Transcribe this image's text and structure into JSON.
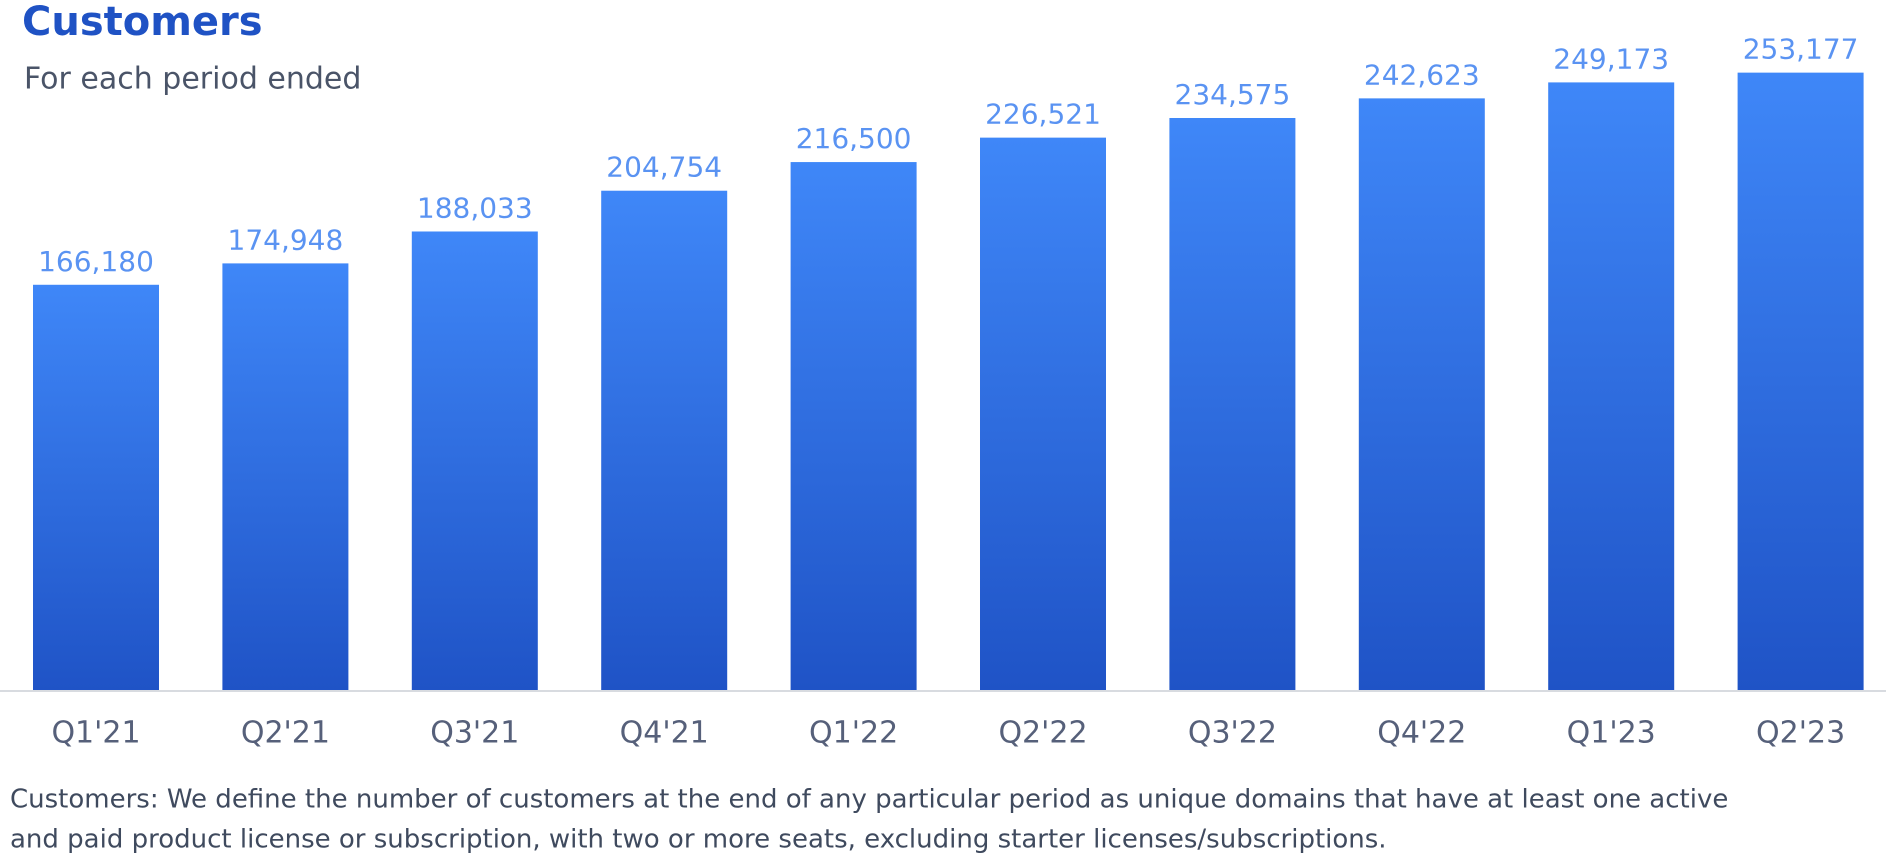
{
  "chart_data": {
    "type": "bar",
    "title": "Customers",
    "subtitle": "For each period ended",
    "categories": [
      "Q1'21",
      "Q2'21",
      "Q3'21",
      "Q4'21",
      "Q1'22",
      "Q2'22",
      "Q3'22",
      "Q4'22",
      "Q1'23",
      "Q2'23"
    ],
    "values": [
      166180,
      174948,
      188033,
      204754,
      216500,
      226521,
      234575,
      242623,
      249173,
      253177
    ],
    "value_labels": [
      "166,180",
      "174,948",
      "188,033",
      "204,754",
      "216,500",
      "226,521",
      "234,575",
      "242,623",
      "249,173",
      "253,177"
    ],
    "color": "#2f6be0",
    "ylim": [
      0,
      260000
    ],
    "footnote": [
      "Customers: We define the number of customers at the end of any particular period as unique domains that have at least one active",
      "and paid product license or subscription, with two or more seats, excluding starter licenses/subscriptions."
    ]
  }
}
